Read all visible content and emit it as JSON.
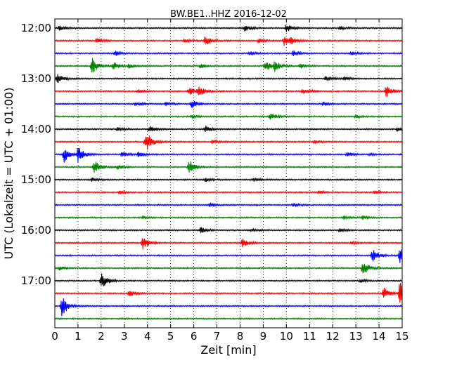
{
  "chart_data": {
    "type": "line",
    "title": "BW.BE1..HHZ 2016-12-02",
    "xlabel": "Zeit  [min]",
    "ylabel": "UTC (Lokalzeit = UTC + 01:00)",
    "xlim": [
      0,
      15
    ],
    "x_ticks": [
      "0",
      "1",
      "2",
      "3",
      "4",
      "5",
      "6",
      "7",
      "8",
      "9",
      "10",
      "11",
      "12",
      "13",
      "14",
      "15"
    ],
    "y_tick_labels": [
      "12:00",
      "13:00",
      "14:00",
      "15:00",
      "16:00",
      "17:00"
    ],
    "y_tick_every_n_traces": 4,
    "trace_minutes": 15,
    "grid": {
      "vertical_dotted": true
    },
    "colors": [
      "#000000",
      "#ff0000",
      "#0000ff",
      "#008000"
    ],
    "traces": [
      {
        "start": "12:00",
        "events": [
          [
            0.2,
            0.6
          ],
          [
            8.2,
            0.8
          ],
          [
            10.0,
            1.0
          ],
          [
            12.3,
            0.5
          ]
        ]
      },
      {
        "start": "12:15",
        "events": [
          [
            1.8,
            0.7
          ],
          [
            5.6,
            0.5
          ],
          [
            6.5,
            1.4
          ],
          [
            8.8,
            0.6
          ],
          [
            9.9,
            1.2
          ],
          [
            10.2,
            0.8
          ]
        ]
      },
      {
        "start": "12:30",
        "events": [
          [
            2.6,
            0.6
          ],
          [
            8.4,
            0.6
          ],
          [
            10.3,
            0.7
          ],
          [
            12.8,
            0.5
          ]
        ]
      },
      {
        "start": "12:45",
        "events": [
          [
            1.6,
            2.2
          ],
          [
            2.5,
            1.0
          ],
          [
            3.2,
            0.6
          ],
          [
            6.3,
            0.5
          ],
          [
            9.1,
            1.4
          ],
          [
            9.5,
            1.2
          ],
          [
            10.6,
            0.6
          ]
        ]
      },
      {
        "start": "13:00",
        "events": [
          [
            0.1,
            1.2
          ],
          [
            11.7,
            0.7
          ],
          [
            12.5,
            0.5
          ]
        ]
      },
      {
        "start": "13:15",
        "events": [
          [
            3.6,
            0.5
          ],
          [
            5.8,
            1.2
          ],
          [
            6.2,
            1.3
          ],
          [
            10.7,
            0.8
          ],
          [
            14.3,
            1.6
          ]
        ]
      },
      {
        "start": "13:30",
        "events": [
          [
            3.5,
            0.6
          ],
          [
            4.8,
            0.5
          ],
          [
            5.9,
            1.2
          ],
          [
            11.6,
            0.5
          ]
        ]
      },
      {
        "start": "13:45",
        "events": [
          [
            5.9,
            0.5
          ],
          [
            9.3,
            1.0
          ],
          [
            13.0,
            0.4
          ]
        ]
      },
      {
        "start": "14:00",
        "events": [
          [
            2.7,
            0.5
          ],
          [
            4.1,
            0.9
          ],
          [
            6.5,
            0.9
          ],
          [
            14.8,
            0.5
          ]
        ]
      },
      {
        "start": "14:15",
        "events": [
          [
            3.9,
            1.6
          ],
          [
            4.0,
            1.1
          ],
          [
            6.8,
            0.5
          ],
          [
            11.2,
            0.4
          ]
        ]
      },
      {
        "start": "14:30",
        "events": [
          [
            0.4,
            2.0
          ],
          [
            1.0,
            2.2
          ],
          [
            2.9,
            0.6
          ],
          [
            3.6,
            0.6
          ],
          [
            12.6,
            0.7
          ],
          [
            13.6,
            0.4
          ]
        ]
      },
      {
        "start": "14:45",
        "events": [
          [
            1.7,
            1.8
          ],
          [
            2.7,
            0.6
          ],
          [
            5.8,
            1.8
          ]
        ]
      },
      {
        "start": "15:00",
        "events": [
          [
            1.6,
            0.5
          ],
          [
            6.5,
            0.5
          ],
          [
            8.6,
            0.4
          ]
        ]
      },
      {
        "start": "15:15",
        "events": [
          [
            2.8,
            0.4
          ],
          [
            11.4,
            0.4
          ],
          [
            13.8,
            0.4
          ]
        ]
      },
      {
        "start": "15:30",
        "events": [
          [
            6.7,
            0.6
          ],
          [
            10.3,
            0.4
          ]
        ]
      },
      {
        "start": "15:45",
        "events": [
          [
            3.8,
            0.4
          ],
          [
            12.5,
            0.4
          ],
          [
            13.3,
            0.5
          ]
        ]
      },
      {
        "start": "16:00",
        "events": [
          [
            6.3,
            0.9
          ],
          [
            8.5,
            0.4
          ],
          [
            12.3,
            0.4
          ]
        ]
      },
      {
        "start": "16:15",
        "events": [
          [
            3.8,
            1.6
          ],
          [
            8.1,
            1.2
          ],
          [
            12.8,
            0.4
          ]
        ]
      },
      {
        "start": "16:30",
        "events": [
          [
            13.7,
            1.8
          ],
          [
            14.9,
            2.2
          ]
        ]
      },
      {
        "start": "16:45",
        "events": [
          [
            0.2,
            0.5
          ],
          [
            13.3,
            2.0
          ]
        ]
      },
      {
        "start": "17:00",
        "events": [
          [
            2.0,
            2.4
          ],
          [
            13.2,
            0.4
          ]
        ]
      },
      {
        "start": "17:15",
        "events": [
          [
            3.2,
            0.8
          ],
          [
            14.2,
            1.5
          ],
          [
            14.9,
            4.0
          ]
        ]
      },
      {
        "start": "17:30",
        "events": [
          [
            0.3,
            3.0
          ]
        ]
      },
      {
        "start": "17:45",
        "events": []
      }
    ]
  }
}
